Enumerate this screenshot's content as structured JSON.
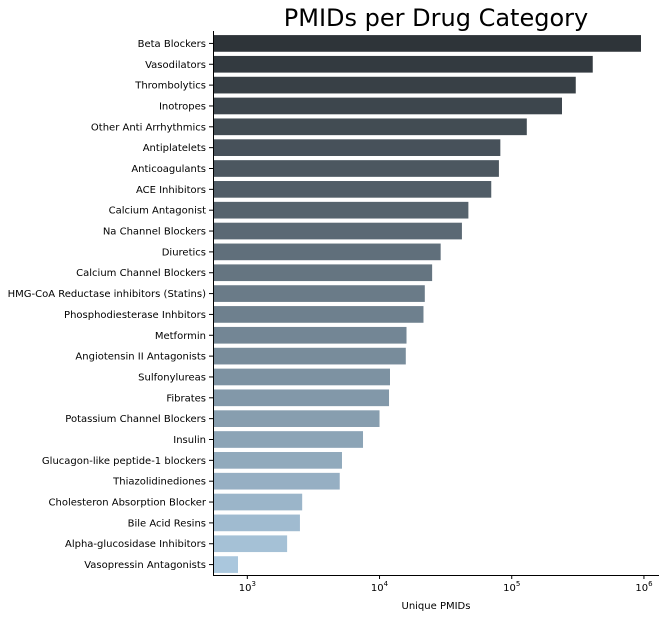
{
  "chart_data": {
    "type": "bar",
    "orientation": "horizontal",
    "title": "PMIDs per Drug Category",
    "xlabel": "Unique PMIDs",
    "ylabel": "",
    "x_scale": "log",
    "xlim": [
      550,
      1300000
    ],
    "x_ticks": [
      {
        "value": 1000,
        "base": "10",
        "exp": "3"
      },
      {
        "value": 10000,
        "base": "10",
        "exp": "4"
      },
      {
        "value": 100000,
        "base": "10",
        "exp": "5"
      },
      {
        "value": 1000000,
        "base": "10",
        "exp": "6"
      }
    ],
    "grid": false,
    "palette": "Blues_d",
    "color_start": "#2e3439",
    "color_end": "#aac7dd",
    "categories": [
      "Beta Blockers",
      "Vasodilators",
      "Thrombolytics",
      "Inotropes",
      "Other Anti Arrhythmics",
      "Antiplatelets",
      "Anticoagulants",
      "ACE Inhibitors",
      "Calcium Antagonist",
      "Na Channel Blockers",
      "Diuretics",
      "Calcium Channel Blockers",
      "HMG-CoA Reductase inhibitors (Statins)",
      "Phosphodiesterase Inhbitors",
      "Metformin",
      "Angiotensin II Antagonists",
      "Sulfonylureas",
      "Fibrates",
      "Potassium Channel Blockers",
      "Insulin",
      "Glucagon-like peptide-1 blockers",
      "Thiazolidinediones",
      "Cholesteron Absorption Blocker",
      "Bile Acid Resins",
      "Alpha-glucosidase Inhibitors",
      "Vasopressin Antagonists"
    ],
    "values": [
      950000,
      410000,
      305000,
      240000,
      130000,
      82000,
      80000,
      70000,
      47000,
      42000,
      29000,
      25000,
      22000,
      21500,
      16000,
      15800,
      12000,
      11800,
      10000,
      7500,
      5200,
      5000,
      2600,
      2500,
      2000,
      850
    ]
  }
}
